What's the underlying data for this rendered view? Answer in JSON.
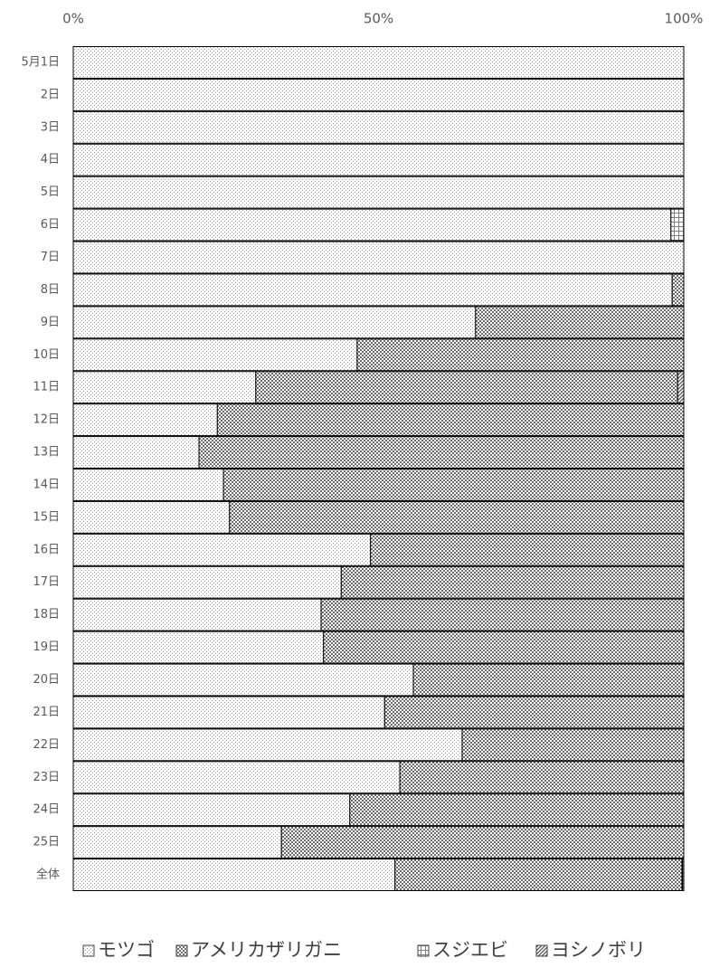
{
  "chart_data": {
    "type": "stacked-bar-100",
    "orientation": "horizontal",
    "categories": [
      "5月1日",
      "2日",
      "3日",
      "4日",
      "5日",
      "6日",
      "7日",
      "8日",
      "9日",
      "10日",
      "11日",
      "12日",
      "13日",
      "14日",
      "15日",
      "16日",
      "17日",
      "18日",
      "19日",
      "20日",
      "21日",
      "22日",
      "23日",
      "24日",
      "25日",
      "全体"
    ],
    "series": [
      {
        "name": "モツゴ",
        "color": "#9a9a9a",
        "pattern": "fine-dots",
        "values": [
          100,
          100,
          100,
          100,
          100,
          97.9,
          100,
          98.1,
          65.9,
          46.5,
          29.9,
          23.6,
          20.6,
          24.6,
          25.6,
          48.7,
          43.9,
          40.6,
          41.0,
          55.7,
          51.0,
          63.7,
          53.5,
          45.3,
          34.1,
          52.7
        ]
      },
      {
        "name": "アメリカザリガニ",
        "color": "#6e6e6e",
        "pattern": "coarse-dots",
        "values": [
          0,
          0,
          0,
          0,
          0,
          0,
          0,
          1.9,
          34.1,
          53.5,
          69.1,
          76.4,
          79.4,
          75.4,
          74.4,
          51.3,
          56.1,
          59.4,
          59.0,
          44.3,
          49.0,
          36.3,
          46.5,
          54.7,
          65.9,
          47.0
        ]
      },
      {
        "name": "スジエビ",
        "color": "#808080",
        "pattern": "grid",
        "values": [
          0,
          0,
          0,
          0,
          0,
          2.1,
          0,
          0,
          0,
          0,
          0,
          0,
          0,
          0,
          0,
          0,
          0,
          0,
          0,
          0,
          0,
          0,
          0,
          0,
          0,
          0.1
        ]
      },
      {
        "name": "ヨシノボリ",
        "color": "#555555",
        "pattern": "diagonal",
        "values": [
          0,
          0,
          0,
          0,
          0,
          0,
          0,
          0,
          0,
          0,
          1.0,
          0,
          0,
          0,
          0,
          0,
          0,
          0,
          0,
          0,
          0,
          0,
          0,
          0,
          0,
          0.2
        ]
      }
    ],
    "xlim": [
      0,
      100
    ],
    "xticks": [
      {
        "value": 0,
        "label": "0%"
      },
      {
        "value": 50,
        "label": "50%"
      },
      {
        "value": 100,
        "label": "100%"
      }
    ],
    "legend": "bottom"
  }
}
